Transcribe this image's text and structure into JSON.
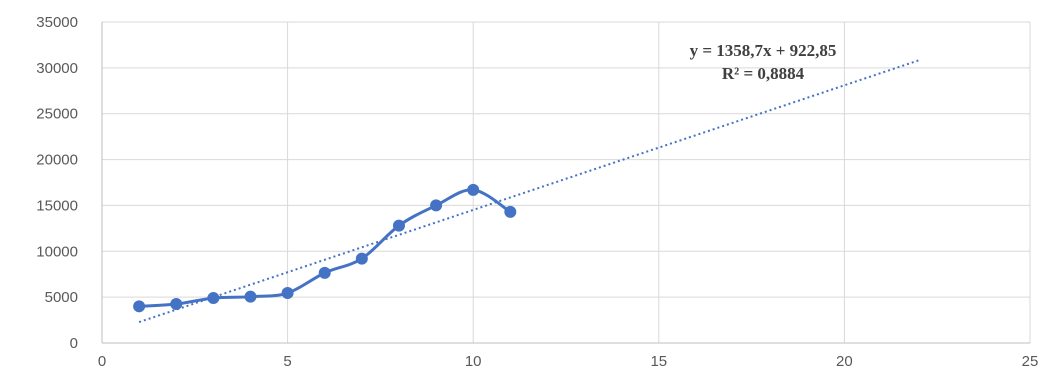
{
  "chart_data": {
    "type": "scatter",
    "title": "",
    "xlabel": "",
    "ylabel": "",
    "xlim": [
      0,
      25
    ],
    "ylim": [
      0,
      35000
    ],
    "x_ticks": [
      0,
      5,
      10,
      15,
      20,
      25
    ],
    "y_ticks": [
      0,
      5000,
      10000,
      15000,
      20000,
      25000,
      30000,
      35000
    ],
    "x_tick_labels": [
      "0",
      "5",
      "10",
      "15",
      "20",
      "25"
    ],
    "y_tick_labels": [
      "0",
      "5000",
      "10000",
      "15000",
      "20000",
      "25000",
      "30000",
      "35000"
    ],
    "grid": "vertical and horizontal",
    "series": [
      {
        "style": "smoothed line with markers",
        "color": "#4472c4",
        "x": [
          1,
          2,
          3,
          4,
          5,
          6,
          7,
          8,
          9,
          10,
          11
        ],
        "y": [
          4000,
          4250,
          4900,
          5050,
          5450,
          7650,
          9200,
          12800,
          15000,
          16700,
          14300
        ]
      }
    ],
    "trendline": {
      "type": "linear",
      "style": "dotted",
      "color": "#4472c4",
      "slope": 1358.7,
      "intercept": 922.85,
      "x_range": [
        1,
        22
      ],
      "equation_label": "y = 1358,7x + 922,85",
      "r2_label": "R² = 0,8884"
    },
    "legend": "none"
  }
}
